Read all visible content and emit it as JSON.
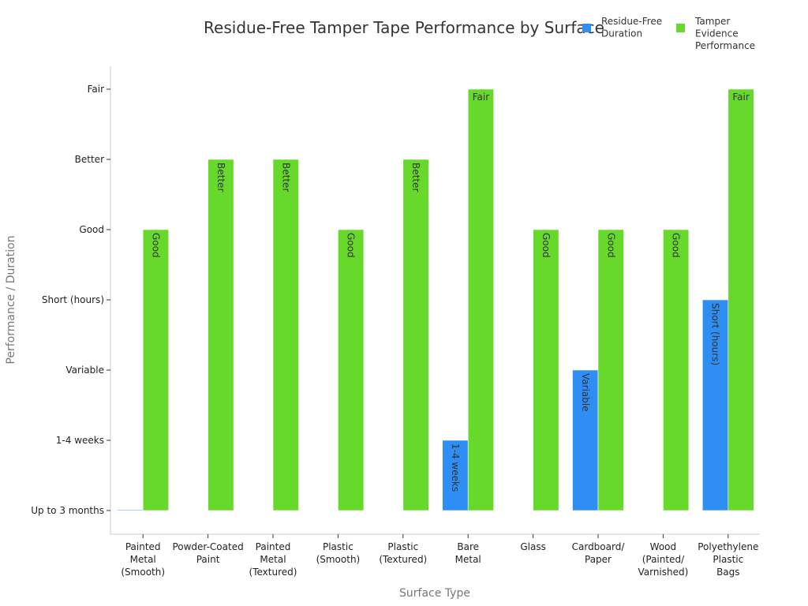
{
  "chart_data": {
    "type": "bar",
    "title": "Residue-Free Tamper Tape Performance by Surface",
    "xlabel": "Surface Type",
    "ylabel": "Performance / Duration",
    "y_ticks": [
      "Up to 3 months",
      "1-4 weeks",
      "Variable",
      "Short (hours)",
      "Good",
      "Better",
      "Fair"
    ],
    "categories": [
      [
        "Painted",
        "Metal",
        "(Smooth)"
      ],
      [
        "Powder-Coated",
        "Paint"
      ],
      [
        "Painted",
        "Metal",
        "(Textured)"
      ],
      [
        "Plastic",
        "(Smooth)"
      ],
      [
        "Plastic",
        "(Textured)"
      ],
      [
        "Bare",
        "Metal"
      ],
      [
        "Glass"
      ],
      [
        "Cardboard/",
        "Paper"
      ],
      [
        "Wood",
        "(Painted/",
        "Varnished)"
      ],
      [
        "Polyethylene",
        "Plastic",
        "Bags"
      ]
    ],
    "series": [
      {
        "name": "Residue-Free Duration",
        "color": "#2f8ef4",
        "values": [
          "Up to 3 months",
          "",
          "",
          "",
          "",
          "1-4 weeks",
          "",
          "Variable",
          "",
          "Short (hours)"
        ],
        "labels": [
          "",
          "",
          "",
          "",
          "",
          "1-4 weeks",
          "",
          "Variable",
          "",
          "Short (hours)"
        ]
      },
      {
        "name": "Tamper Evidence Performance",
        "color": "#66d92a",
        "values": [
          "Good",
          "Better",
          "Better",
          "Good",
          "Better",
          "Fair",
          "Good",
          "Good",
          "Good",
          "Fair"
        ],
        "labels": [
          "Good",
          "Better",
          "Better",
          "Good",
          "Better",
          "Fair",
          "Good",
          "Good",
          "Good",
          "Fair"
        ]
      }
    ],
    "legend": [
      {
        "lines": [
          "Residue-Free",
          "Duration"
        ],
        "color": "#2f8ef4"
      },
      {
        "lines": [
          "Tamper",
          "Evidence",
          "Performance"
        ],
        "color": "#66d92a"
      }
    ],
    "legend_position": "top-right",
    "grid": false
  }
}
